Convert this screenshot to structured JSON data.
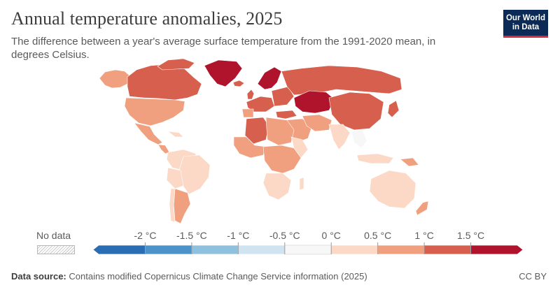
{
  "header": {
    "title": "Annual temperature anomalies, 2025",
    "subtitle": "The difference between a year's average surface temperature from the 1991-2020 mean, in degrees Celsius."
  },
  "logo": {
    "line1": "Our World",
    "line2": "in Data"
  },
  "legend": {
    "no_data_label": "No data",
    "ticks": [
      "-2 °C",
      "-1.5 °C",
      "-1 °C",
      "-0.5 °C",
      "0 °C",
      "0.5 °C",
      "1 °C",
      "1.5 °C"
    ],
    "bins": [
      {
        "from": "< -2",
        "color": "#2a6db3"
      },
      {
        "from": "-2",
        "to": "-1.5",
        "color": "#4b93c8"
      },
      {
        "from": "-1.5",
        "to": "-1",
        "color": "#8fc0de"
      },
      {
        "from": "-1",
        "to": "-0.5",
        "color": "#cfe3f0"
      },
      {
        "from": "-0.5",
        "to": "0",
        "color": "#f7f7f7"
      },
      {
        "from": "0",
        "to": "0.5",
        "color": "#fcd9c6"
      },
      {
        "from": "0.5",
        "to": "1",
        "color": "#f0a07f"
      },
      {
        "from": "1",
        "to": "1.5",
        "color": "#d6604d"
      },
      {
        "from": "> 1.5",
        "color": "#b0142c"
      }
    ]
  },
  "map_colors": {
    "no_data": "#e8e8e8",
    "border": "#ffffff"
  },
  "footer": {
    "source_label": "Data source:",
    "source_text": "Contains modified Copernicus Climate Change Service information (2025)",
    "license": "CC BY"
  }
}
